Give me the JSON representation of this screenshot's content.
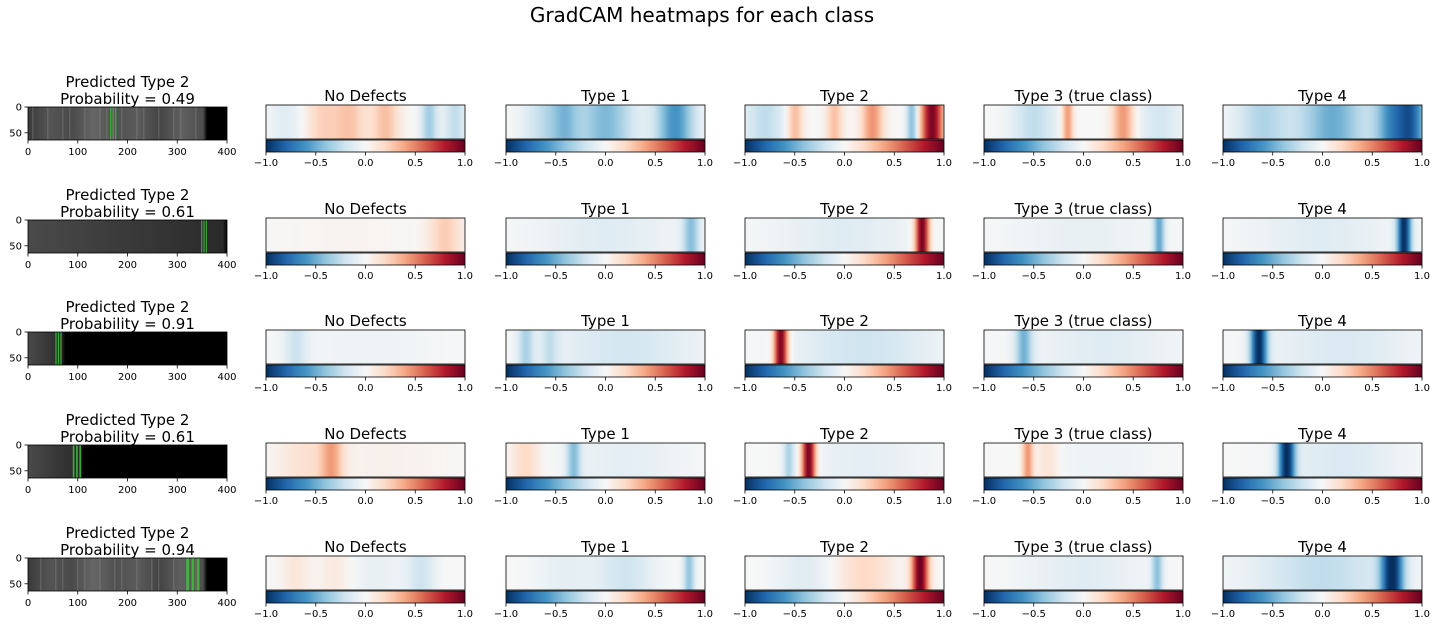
{
  "figure": {
    "title": "GradCAM heatmaps for each class"
  },
  "heatmap_titles": [
    "No Defects",
    "Type 1",
    "Type 2",
    "Type 3 (true class)",
    "Type 4"
  ],
  "colorbar": {
    "colormap": "RdBu_r",
    "range": [
      -1.0,
      1.0
    ],
    "ticks": [
      "−1.0",
      "−0.5",
      "0.0",
      "0.5",
      "1.0"
    ],
    "colors": {
      "low": "#053061",
      "mid": "#f7f7f7",
      "high": "#67001f"
    }
  },
  "image_axes": {
    "xticks": [
      "0",
      "100",
      "200",
      "300",
      "400"
    ],
    "yticks": [
      "0",
      "50"
    ],
    "xlim": [
      0,
      400
    ],
    "ylim": [
      64,
      0
    ]
  },
  "rows": [
    {
      "title_line1": "Predicted Type 2",
      "title_line2": "Probability = 0.49"
    },
    {
      "title_line1": "Predicted Type 2",
      "title_line2": "Probability = 0.61"
    },
    {
      "title_line1": "Predicted Type 2",
      "title_line2": "Probability = 0.91"
    },
    {
      "title_line1": "Predicted Type 2",
      "title_line2": "Probability = 0.61"
    },
    {
      "title_line1": "Predicted Type 2",
      "title_line2": "Probability = 0.94"
    }
  ],
  "chart_data": {
    "type": "heatmap",
    "title": "GradCAM heatmaps for each class",
    "layout": "5 rows x 6 columns (input image + 5 class heatmaps)",
    "value_range": [
      -1.0,
      1.0
    ],
    "rows": [
      {
        "input": {
          "background": "gray",
          "strip_end": 400,
          "bright_band": [
            165,
            180
          ]
        },
        "heatmaps": [
          [
            {
              "c": 0.28,
              "w": 0.06,
              "v": 0.22
            },
            {
              "c": 0.42,
              "w": 0.06,
              "v": 0.28
            },
            {
              "c": 0.6,
              "w": 0.05,
              "v": 0.3
            },
            {
              "c": 0.82,
              "w": 0.03,
              "v": -0.35
            },
            {
              "c": 0.95,
              "w": 0.04,
              "v": -0.25
            },
            {
              "c": 0.1,
              "w": 0.06,
              "v": -0.12
            }
          ],
          [
            {
              "c": 0.2,
              "w": 0.08,
              "v": -0.25
            },
            {
              "c": 0.5,
              "w": 0.1,
              "v": -0.45
            },
            {
              "c": 0.85,
              "w": 0.07,
              "v": -0.6
            },
            {
              "c": 0.3,
              "w": 0.05,
              "v": -0.3
            }
          ],
          [
            {
              "c": 0.25,
              "w": 0.03,
              "v": 0.35
            },
            {
              "c": 0.45,
              "w": 0.03,
              "v": 0.3
            },
            {
              "c": 0.64,
              "w": 0.04,
              "v": 0.45
            },
            {
              "c": 0.84,
              "w": 0.02,
              "v": -0.45
            },
            {
              "c": 0.94,
              "w": 0.04,
              "v": 0.95
            },
            {
              "c": 0.1,
              "w": 0.08,
              "v": -0.25
            }
          ],
          [
            {
              "c": 0.42,
              "w": 0.02,
              "v": 0.45
            },
            {
              "c": 0.7,
              "w": 0.04,
              "v": 0.45
            },
            {
              "c": 0.25,
              "w": 0.08,
              "v": -0.25
            },
            {
              "c": 0.88,
              "w": 0.08,
              "v": -0.18
            }
          ],
          [
            {
              "c": 0.2,
              "w": 0.1,
              "v": -0.3
            },
            {
              "c": 0.55,
              "w": 0.12,
              "v": -0.5
            },
            {
              "c": 0.85,
              "w": 0.06,
              "v": -0.6
            },
            {
              "c": 0.95,
              "w": 0.05,
              "v": -0.7
            }
          ]
        ]
      },
      {
        "input": {
          "background": "black",
          "strip_end": 400,
          "bright_band": [
            348,
            362
          ]
        },
        "heatmaps": [
          [
            {
              "c": 0.9,
              "w": 0.06,
              "v": 0.25
            },
            {
              "c": 0.4,
              "w": 0.2,
              "v": 0.03
            }
          ],
          [
            {
              "c": 0.93,
              "w": 0.03,
              "v": -0.4
            },
            {
              "c": 0.5,
              "w": 0.25,
              "v": -0.12
            }
          ],
          [
            {
              "c": 0.89,
              "w": 0.025,
              "v": 1.0
            },
            {
              "c": 0.5,
              "w": 0.25,
              "v": -0.12
            }
          ],
          [
            {
              "c": 0.88,
              "w": 0.02,
              "v": -0.5
            },
            {
              "c": 0.5,
              "w": 0.25,
              "v": -0.08
            }
          ],
          [
            {
              "c": 0.91,
              "w": 0.025,
              "v": -1.0
            },
            {
              "c": 0.5,
              "w": 0.25,
              "v": -0.12
            }
          ]
        ]
      },
      {
        "input": {
          "background": "black",
          "strip_end": 75,
          "bright_band": [
            55,
            70
          ]
        },
        "heatmaps": [
          [
            {
              "c": 0.15,
              "w": 0.04,
              "v": -0.2
            },
            {
              "c": 0.5,
              "w": 0.25,
              "v": -0.05
            }
          ],
          [
            {
              "c": 0.1,
              "w": 0.03,
              "v": -0.3
            },
            {
              "c": 0.22,
              "w": 0.03,
              "v": -0.2
            },
            {
              "c": 0.6,
              "w": 0.25,
              "v": -0.18
            }
          ],
          [
            {
              "c": 0.18,
              "w": 0.025,
              "v": 1.0
            },
            {
              "c": 0.6,
              "w": 0.25,
              "v": -0.2
            }
          ],
          [
            {
              "c": 0.2,
              "w": 0.03,
              "v": -0.45
            },
            {
              "c": 0.6,
              "w": 0.25,
              "v": -0.12
            }
          ],
          [
            {
              "c": 0.18,
              "w": 0.03,
              "v": -1.0
            },
            {
              "c": 0.6,
              "w": 0.25,
              "v": -0.15
            }
          ]
        ]
      },
      {
        "input": {
          "background": "black",
          "strip_end": 112,
          "bright_band": [
            90,
            110
          ]
        },
        "heatmaps": [
          [
            {
              "c": 0.33,
              "w": 0.04,
              "v": 0.35
            },
            {
              "c": 0.2,
              "w": 0.1,
              "v": 0.15
            },
            {
              "c": 0.6,
              "w": 0.2,
              "v": 0.05
            }
          ],
          [
            {
              "c": 0.1,
              "w": 0.05,
              "v": 0.2
            },
            {
              "c": 0.34,
              "w": 0.025,
              "v": -0.4
            },
            {
              "c": 0.6,
              "w": 0.2,
              "v": -0.1
            }
          ],
          [
            {
              "c": 0.32,
              "w": 0.025,
              "v": 1.0
            },
            {
              "c": 0.22,
              "w": 0.02,
              "v": -0.3
            },
            {
              "c": 0.6,
              "w": 0.2,
              "v": -0.1
            }
          ],
          [
            {
              "c": 0.22,
              "w": 0.02,
              "v": 0.45
            },
            {
              "c": 0.32,
              "w": 0.04,
              "v": 0.15
            },
            {
              "c": 0.6,
              "w": 0.2,
              "v": -0.05
            }
          ],
          [
            {
              "c": 0.32,
              "w": 0.03,
              "v": -1.0
            },
            {
              "c": 0.6,
              "w": 0.2,
              "v": -0.15
            }
          ]
        ]
      },
      {
        "input": {
          "background": "gray",
          "strip_end": 400,
          "bright_band": [
            318,
            350
          ]
        },
        "heatmaps": [
          [
            {
              "c": 0.15,
              "w": 0.05,
              "v": 0.12
            },
            {
              "c": 0.35,
              "w": 0.06,
              "v": 0.1
            },
            {
              "c": 0.78,
              "w": 0.05,
              "v": -0.2
            },
            {
              "c": 0.55,
              "w": 0.1,
              "v": -0.08
            }
          ],
          [
            {
              "c": 0.6,
              "w": 0.1,
              "v": -0.2
            },
            {
              "c": 0.92,
              "w": 0.02,
              "v": -0.4
            },
            {
              "c": 0.3,
              "w": 0.1,
              "v": -0.1
            }
          ],
          [
            {
              "c": 0.88,
              "w": 0.03,
              "v": 1.0
            },
            {
              "c": 0.6,
              "w": 0.1,
              "v": 0.2
            },
            {
              "c": 0.3,
              "w": 0.1,
              "v": -0.12
            }
          ],
          [
            {
              "c": 0.87,
              "w": 0.02,
              "v": -0.4
            },
            {
              "c": 0.5,
              "w": 0.2,
              "v": -0.12
            }
          ],
          [
            {
              "c": 0.85,
              "w": 0.04,
              "v": -1.0
            },
            {
              "c": 0.5,
              "w": 0.25,
              "v": -0.25
            }
          ]
        ]
      }
    ]
  }
}
